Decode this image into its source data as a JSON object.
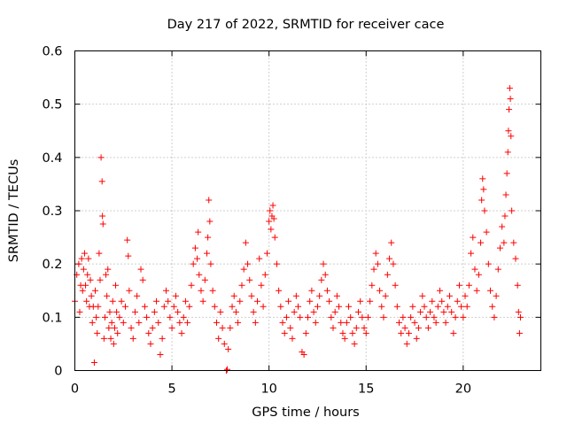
{
  "chart_data": {
    "type": "scatter",
    "title": "Day 217 of 2022, SRMTID for receiver cace",
    "xlabel": "GPS time / hours",
    "ylabel": "SRMTID / TECUs",
    "xlim": [
      0,
      24
    ],
    "ylim": [
      0,
      0.6
    ],
    "xticks": [
      0,
      5,
      10,
      15,
      20
    ],
    "xtick_labels": [
      "0",
      "5",
      "10",
      "15",
      "20"
    ],
    "yticks": [
      0,
      0.1,
      0.2,
      0.3,
      0.4,
      0.5,
      0.6
    ],
    "ytick_labels": [
      "0",
      "0.1",
      "0.2",
      "0.3",
      "0.4",
      "0.5",
      "0.6"
    ],
    "grid": true,
    "marker": "plus",
    "series": [
      {
        "name": "SRMTID",
        "color": "#ff0000",
        "points": [
          [
            0.0,
            0.13
          ],
          [
            0.1,
            0.18
          ],
          [
            0.2,
            0.2
          ],
          [
            0.25,
            0.11
          ],
          [
            0.3,
            0.16
          ],
          [
            0.35,
            0.21
          ],
          [
            0.4,
            0.15
          ],
          [
            0.45,
            0.19
          ],
          [
            0.5,
            0.22
          ],
          [
            0.55,
            0.16
          ],
          [
            0.6,
            0.13
          ],
          [
            0.65,
            0.18
          ],
          [
            0.7,
            0.21
          ],
          [
            0.75,
            0.12
          ],
          [
            0.8,
            0.17
          ],
          [
            0.85,
            0.14
          ],
          [
            0.9,
            0.09
          ],
          [
            0.95,
            0.12
          ],
          [
            1.0,
            0.015
          ],
          [
            1.05,
            0.15
          ],
          [
            1.1,
            0.1
          ],
          [
            1.15,
            0.07
          ],
          [
            1.2,
            0.12
          ],
          [
            1.25,
            0.22
          ],
          [
            1.3,
            0.17
          ],
          [
            1.35,
            0.4
          ],
          [
            1.4,
            0.355
          ],
          [
            1.42,
            0.29
          ],
          [
            1.45,
            0.275
          ],
          [
            1.5,
            0.06
          ],
          [
            1.55,
            0.1
          ],
          [
            1.6,
            0.18
          ],
          [
            1.65,
            0.14
          ],
          [
            1.7,
            0.19
          ],
          [
            1.75,
            0.08
          ],
          [
            1.8,
            0.11
          ],
          [
            1.85,
            0.06
          ],
          [
            1.9,
            0.09
          ],
          [
            1.95,
            0.13
          ],
          [
            2.0,
            0.05
          ],
          [
            2.05,
            0.08
          ],
          [
            2.1,
            0.16
          ],
          [
            2.15,
            0.11
          ],
          [
            2.2,
            0.07
          ],
          [
            2.3,
            0.1
          ],
          [
            2.4,
            0.13
          ],
          [
            2.5,
            0.09
          ],
          [
            2.6,
            0.12
          ],
          [
            2.7,
            0.245
          ],
          [
            2.75,
            0.215
          ],
          [
            2.8,
            0.15
          ],
          [
            2.9,
            0.08
          ],
          [
            3.0,
            0.06
          ],
          [
            3.1,
            0.11
          ],
          [
            3.2,
            0.14
          ],
          [
            3.3,
            0.09
          ],
          [
            3.4,
            0.19
          ],
          [
            3.5,
            0.17
          ],
          [
            3.6,
            0.12
          ],
          [
            3.7,
            0.1
          ],
          [
            3.8,
            0.07
          ],
          [
            3.9,
            0.05
          ],
          [
            4.0,
            0.08
          ],
          [
            4.1,
            0.11
          ],
          [
            4.2,
            0.13
          ],
          [
            4.3,
            0.09
          ],
          [
            4.4,
            0.03
          ],
          [
            4.5,
            0.06
          ],
          [
            4.6,
            0.12
          ],
          [
            4.7,
            0.15
          ],
          [
            4.8,
            0.13
          ],
          [
            4.9,
            0.1
          ],
          [
            5.0,
            0.08
          ],
          [
            5.1,
            0.12
          ],
          [
            5.2,
            0.14
          ],
          [
            5.3,
            0.11
          ],
          [
            5.4,
            0.09
          ],
          [
            5.5,
            0.07
          ],
          [
            5.6,
            0.1
          ],
          [
            5.7,
            0.13
          ],
          [
            5.8,
            0.09
          ],
          [
            5.9,
            0.12
          ],
          [
            6.0,
            0.16
          ],
          [
            6.1,
            0.2
          ],
          [
            6.2,
            0.23
          ],
          [
            6.3,
            0.21
          ],
          [
            6.35,
            0.26
          ],
          [
            6.4,
            0.18
          ],
          [
            6.5,
            0.15
          ],
          [
            6.6,
            0.13
          ],
          [
            6.7,
            0.17
          ],
          [
            6.8,
            0.22
          ],
          [
            6.85,
            0.25
          ],
          [
            6.9,
            0.32
          ],
          [
            6.95,
            0.28
          ],
          [
            7.0,
            0.2
          ],
          [
            7.1,
            0.15
          ],
          [
            7.2,
            0.12
          ],
          [
            7.3,
            0.09
          ],
          [
            7.4,
            0.06
          ],
          [
            7.5,
            0.11
          ],
          [
            7.6,
            0.08
          ],
          [
            7.7,
            0.05
          ],
          [
            7.8,
            0.0
          ],
          [
            7.85,
            0.002
          ],
          [
            7.9,
            0.04
          ],
          [
            8.0,
            0.08
          ],
          [
            8.1,
            0.12
          ],
          [
            8.2,
            0.14
          ],
          [
            8.3,
            0.11
          ],
          [
            8.4,
            0.09
          ],
          [
            8.5,
            0.13
          ],
          [
            8.6,
            0.16
          ],
          [
            8.7,
            0.19
          ],
          [
            8.8,
            0.24
          ],
          [
            8.9,
            0.2
          ],
          [
            9.0,
            0.17
          ],
          [
            9.1,
            0.14
          ],
          [
            9.2,
            0.11
          ],
          [
            9.3,
            0.09
          ],
          [
            9.4,
            0.13
          ],
          [
            9.5,
            0.21
          ],
          [
            9.6,
            0.16
          ],
          [
            9.7,
            0.12
          ],
          [
            9.8,
            0.18
          ],
          [
            9.9,
            0.22
          ],
          [
            10.0,
            0.28
          ],
          [
            10.05,
            0.3
          ],
          [
            10.1,
            0.265
          ],
          [
            10.15,
            0.29
          ],
          [
            10.2,
            0.31
          ],
          [
            10.25,
            0.285
          ],
          [
            10.3,
            0.25
          ],
          [
            10.4,
            0.2
          ],
          [
            10.5,
            0.15
          ],
          [
            10.6,
            0.12
          ],
          [
            10.7,
            0.09
          ],
          [
            10.8,
            0.07
          ],
          [
            10.9,
            0.1
          ],
          [
            11.0,
            0.13
          ],
          [
            11.1,
            0.08
          ],
          [
            11.2,
            0.06
          ],
          [
            11.3,
            0.11
          ],
          [
            11.4,
            0.14
          ],
          [
            11.5,
            0.12
          ],
          [
            11.6,
            0.1
          ],
          [
            11.7,
            0.035
          ],
          [
            11.8,
            0.03
          ],
          [
            11.9,
            0.07
          ],
          [
            12.0,
            0.1
          ],
          [
            12.1,
            0.13
          ],
          [
            12.2,
            0.15
          ],
          [
            12.3,
            0.11
          ],
          [
            12.4,
            0.09
          ],
          [
            12.5,
            0.12
          ],
          [
            12.6,
            0.14
          ],
          [
            12.7,
            0.17
          ],
          [
            12.8,
            0.2
          ],
          [
            12.9,
            0.18
          ],
          [
            13.0,
            0.15
          ],
          [
            13.1,
            0.13
          ],
          [
            13.2,
            0.1
          ],
          [
            13.3,
            0.08
          ],
          [
            13.4,
            0.11
          ],
          [
            13.5,
            0.14
          ],
          [
            13.6,
            0.12
          ],
          [
            13.7,
            0.09
          ],
          [
            13.8,
            0.07
          ],
          [
            13.9,
            0.06
          ],
          [
            14.0,
            0.09
          ],
          [
            14.1,
            0.12
          ],
          [
            14.2,
            0.1
          ],
          [
            14.3,
            0.07
          ],
          [
            14.4,
            0.05
          ],
          [
            14.5,
            0.08
          ],
          [
            14.6,
            0.11
          ],
          [
            14.7,
            0.13
          ],
          [
            14.8,
            0.1
          ],
          [
            14.9,
            0.08
          ],
          [
            15.0,
            0.07
          ],
          [
            15.1,
            0.1
          ],
          [
            15.2,
            0.13
          ],
          [
            15.3,
            0.16
          ],
          [
            15.4,
            0.19
          ],
          [
            15.5,
            0.22
          ],
          [
            15.6,
            0.2
          ],
          [
            15.7,
            0.15
          ],
          [
            15.8,
            0.12
          ],
          [
            15.9,
            0.1
          ],
          [
            16.0,
            0.14
          ],
          [
            16.1,
            0.18
          ],
          [
            16.2,
            0.21
          ],
          [
            16.3,
            0.24
          ],
          [
            16.4,
            0.2
          ],
          [
            16.5,
            0.16
          ],
          [
            16.6,
            0.12
          ],
          [
            16.7,
            0.09
          ],
          [
            16.8,
            0.07
          ],
          [
            16.9,
            0.1
          ],
          [
            17.0,
            0.08
          ],
          [
            17.1,
            0.05
          ],
          [
            17.2,
            0.07
          ],
          [
            17.3,
            0.1
          ],
          [
            17.4,
            0.12
          ],
          [
            17.5,
            0.09
          ],
          [
            17.6,
            0.06
          ],
          [
            17.7,
            0.08
          ],
          [
            17.8,
            0.11
          ],
          [
            17.9,
            0.14
          ],
          [
            18.0,
            0.12
          ],
          [
            18.1,
            0.1
          ],
          [
            18.2,
            0.08
          ],
          [
            18.3,
            0.11
          ],
          [
            18.4,
            0.13
          ],
          [
            18.5,
            0.1
          ],
          [
            18.6,
            0.09
          ],
          [
            18.7,
            0.12
          ],
          [
            18.8,
            0.15
          ],
          [
            18.9,
            0.13
          ],
          [
            19.0,
            0.11
          ],
          [
            19.1,
            0.09
          ],
          [
            19.2,
            0.12
          ],
          [
            19.3,
            0.14
          ],
          [
            19.4,
            0.11
          ],
          [
            19.5,
            0.07
          ],
          [
            19.6,
            0.1
          ],
          [
            19.7,
            0.13
          ],
          [
            19.8,
            0.16
          ],
          [
            19.9,
            0.12
          ],
          [
            20.0,
            0.1
          ],
          [
            20.1,
            0.14
          ],
          [
            20.2,
            0.12
          ],
          [
            20.3,
            0.16
          ],
          [
            20.4,
            0.22
          ],
          [
            20.5,
            0.25
          ],
          [
            20.6,
            0.19
          ],
          [
            20.7,
            0.15
          ],
          [
            20.8,
            0.18
          ],
          [
            20.9,
            0.24
          ],
          [
            20.95,
            0.32
          ],
          [
            21.0,
            0.36
          ],
          [
            21.05,
            0.34
          ],
          [
            21.1,
            0.3
          ],
          [
            21.2,
            0.26
          ],
          [
            21.3,
            0.2
          ],
          [
            21.4,
            0.15
          ],
          [
            21.5,
            0.12
          ],
          [
            21.6,
            0.1
          ],
          [
            21.7,
            0.14
          ],
          [
            21.8,
            0.19
          ],
          [
            21.9,
            0.23
          ],
          [
            22.0,
            0.27
          ],
          [
            22.1,
            0.24
          ],
          [
            22.15,
            0.29
          ],
          [
            22.2,
            0.33
          ],
          [
            22.25,
            0.37
          ],
          [
            22.3,
            0.41
          ],
          [
            22.33,
            0.45
          ],
          [
            22.36,
            0.49
          ],
          [
            22.4,
            0.53
          ],
          [
            22.43,
            0.51
          ],
          [
            22.46,
            0.44
          ],
          [
            22.5,
            0.3
          ],
          [
            22.6,
            0.24
          ],
          [
            22.7,
            0.21
          ],
          [
            22.8,
            0.16
          ],
          [
            22.85,
            0.11
          ],
          [
            22.9,
            0.07
          ],
          [
            22.95,
            0.1
          ]
        ]
      }
    ]
  }
}
